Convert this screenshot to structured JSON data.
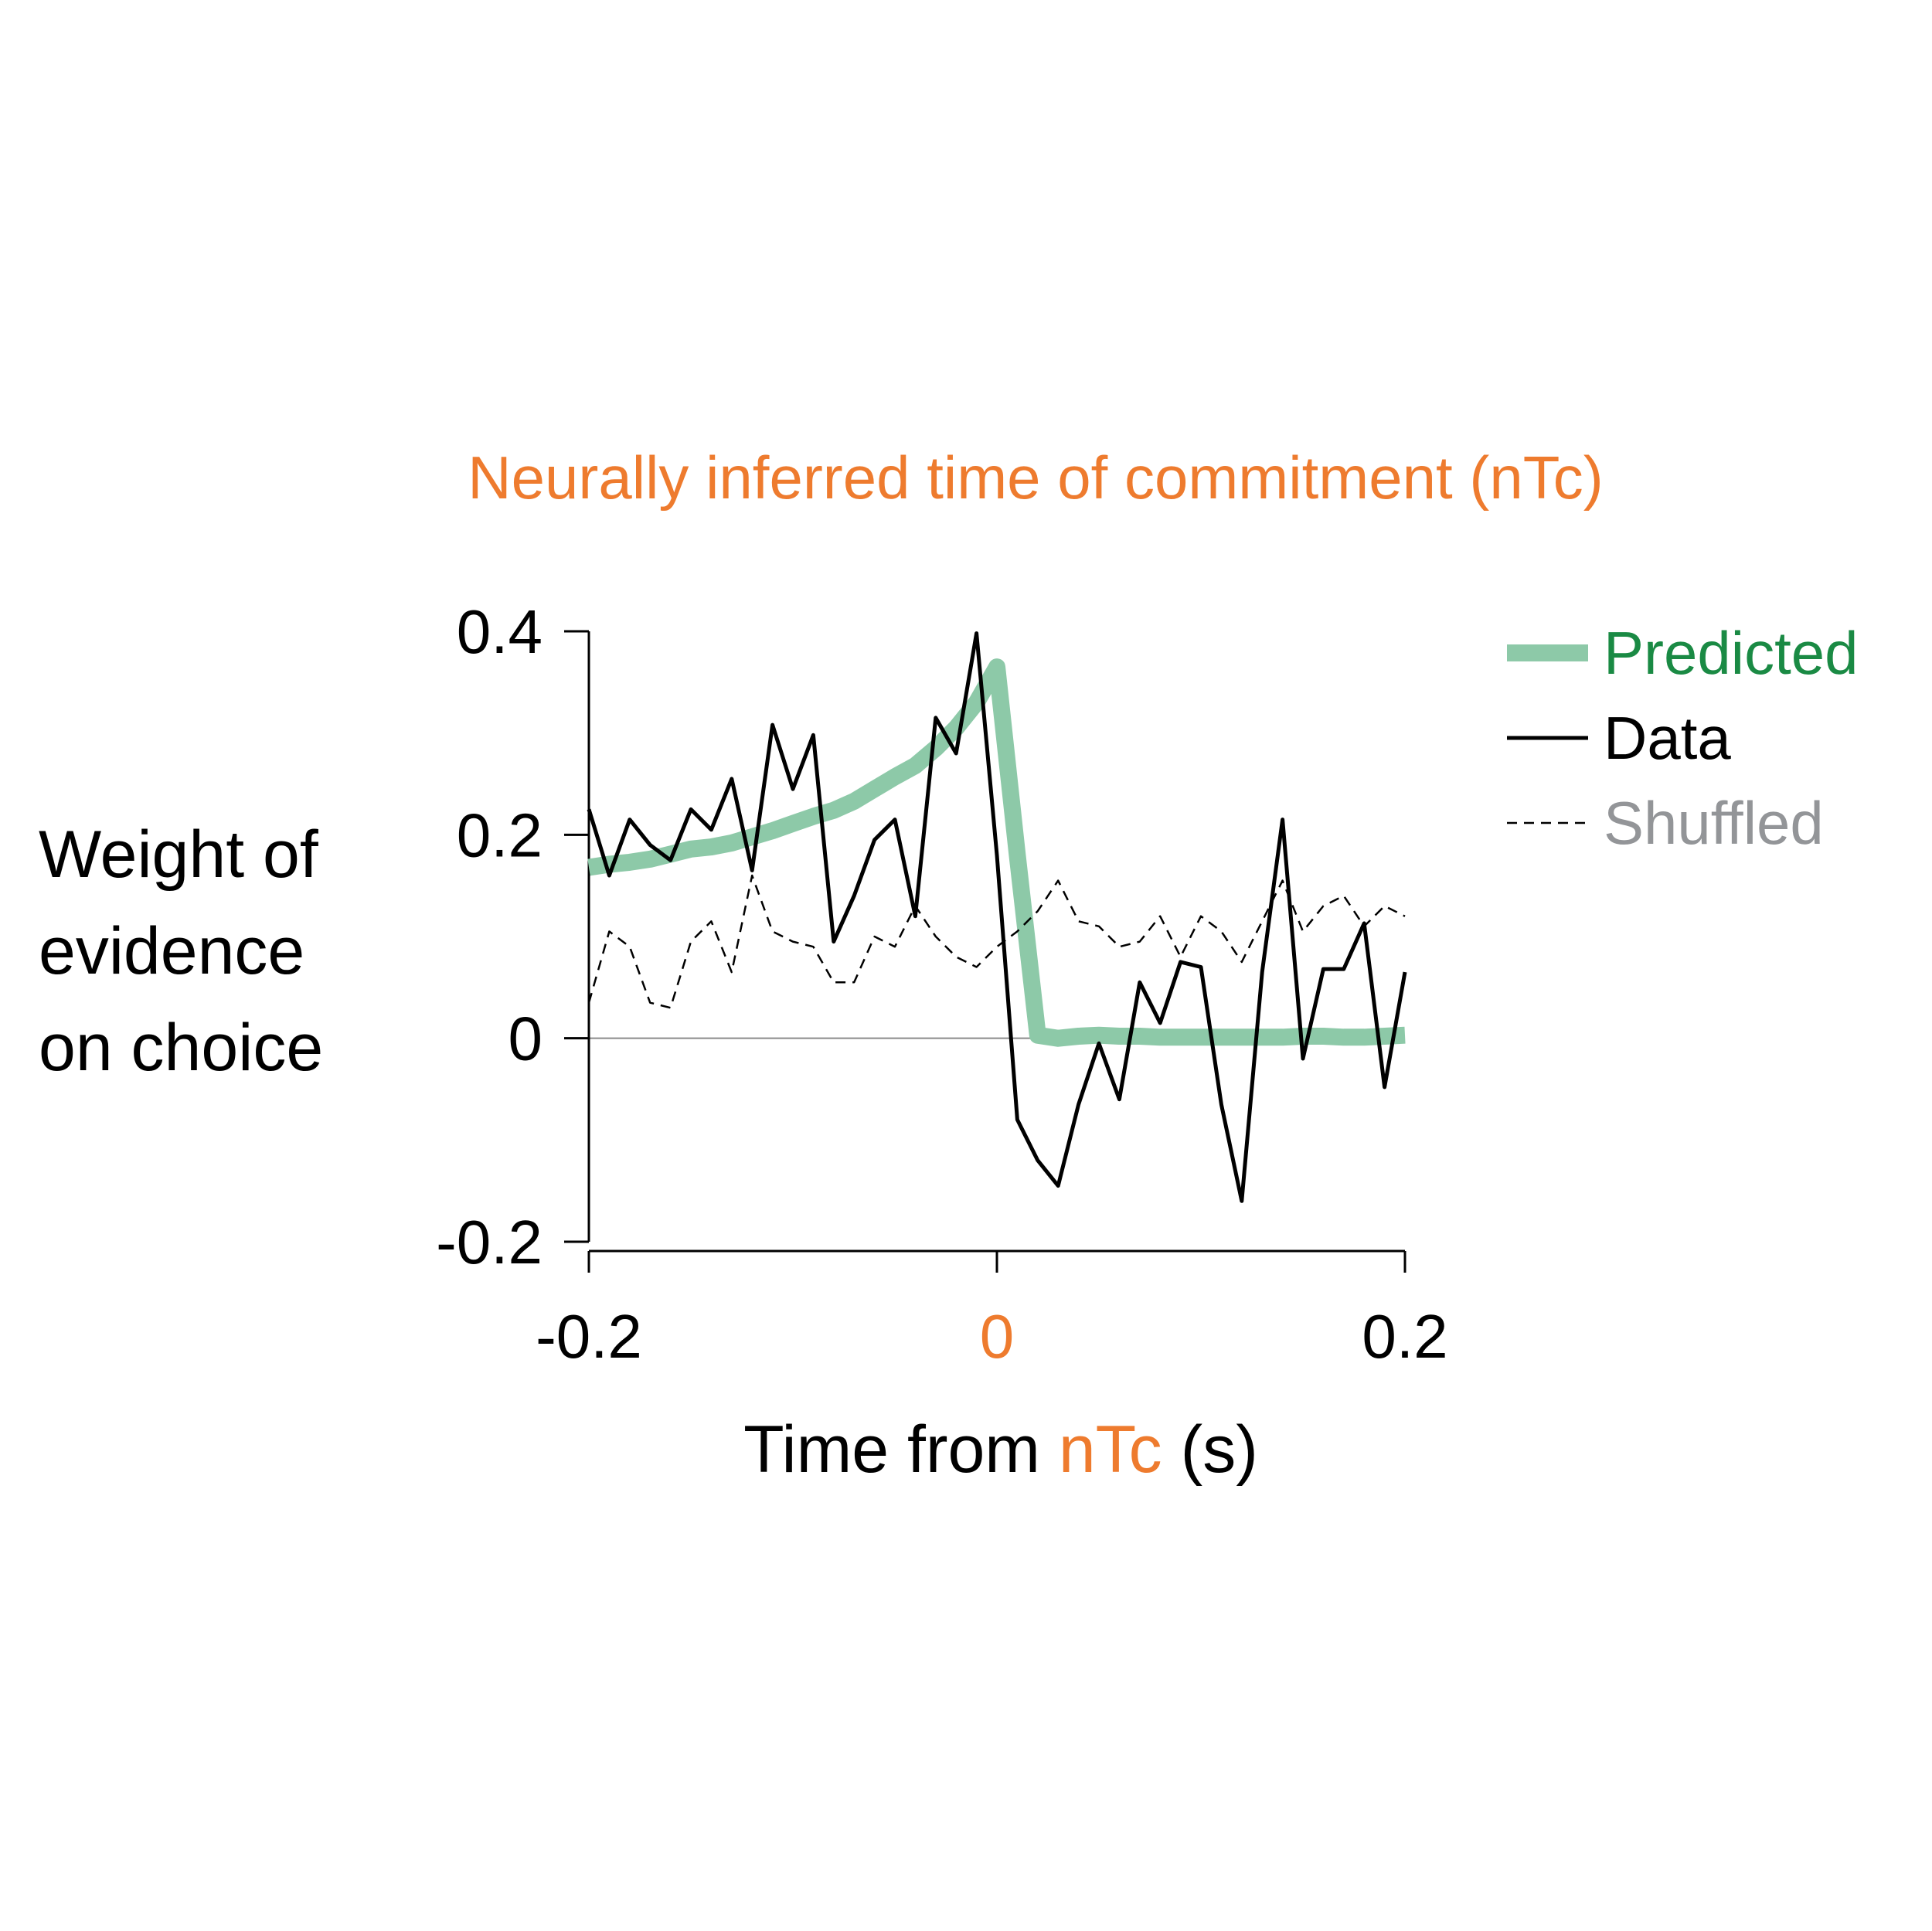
{
  "chart_data": {
    "type": "line",
    "title": "Neurally inferred time of commitment (nTc)",
    "ylabel_lines": [
      "Weight of",
      "evidence",
      "on choice"
    ],
    "xlabel": {
      "prefix": "Time from ",
      "highlight": "nTc",
      "suffix": " (s)"
    },
    "xlim": [
      -0.2,
      0.2
    ],
    "ylim": [
      -0.2,
      0.4
    ],
    "xticks": [
      {
        "value": -0.2,
        "label": "-0.2"
      },
      {
        "value": 0,
        "label": "0"
      },
      {
        "value": 0.2,
        "label": "0.2"
      }
    ],
    "yticks": [
      {
        "value": 0.4,
        "label": "0.4"
      },
      {
        "value": 0.2,
        "label": "0.2"
      },
      {
        "value": 0,
        "label": "0"
      },
      {
        "value": -0.2,
        "label": "-0.2"
      }
    ],
    "zero_line": true,
    "legend_position": "top-right",
    "series": [
      {
        "name": "Predicted",
        "color": "#8dc9a8",
        "label_color": "#1a8a44",
        "style": "thick",
        "x": [
          -0.2,
          -0.19,
          -0.18,
          -0.17,
          -0.16,
          -0.15,
          -0.14,
          -0.13,
          -0.12,
          -0.11,
          -0.1,
          -0.09,
          -0.08,
          -0.07,
          -0.06,
          -0.05,
          -0.04,
          -0.03,
          -0.02,
          -0.01,
          0.0,
          0.01,
          0.02,
          0.03,
          0.04,
          0.05,
          0.06,
          0.07,
          0.08,
          0.09,
          0.1,
          0.11,
          0.12,
          0.13,
          0.14,
          0.15,
          0.16,
          0.17,
          0.18,
          0.19,
          0.2
        ],
        "y": [
          0.168,
          0.171,
          0.173,
          0.176,
          0.181,
          0.186,
          0.188,
          0.192,
          0.198,
          0.204,
          0.211,
          0.218,
          0.224,
          0.233,
          0.245,
          0.257,
          0.268,
          0.285,
          0.305,
          0.33,
          0.365,
          0.18,
          0.003,
          0.0,
          0.002,
          0.003,
          0.002,
          0.002,
          0.001,
          0.001,
          0.001,
          0.001,
          0.001,
          0.001,
          0.001,
          0.002,
          0.002,
          0.001,
          0.001,
          0.002,
          0.003
        ]
      },
      {
        "name": "Data",
        "color": "#000000",
        "label_color": "#000000",
        "style": "solid",
        "x": [
          -0.2,
          -0.19,
          -0.18,
          -0.17,
          -0.16,
          -0.15,
          -0.14,
          -0.13,
          -0.12,
          -0.11,
          -0.1,
          -0.09,
          -0.08,
          -0.07,
          -0.06,
          -0.05,
          -0.04,
          -0.03,
          -0.02,
          -0.01,
          0.0,
          0.01,
          0.02,
          0.03,
          0.04,
          0.05,
          0.06,
          0.07,
          0.08,
          0.09,
          0.1,
          0.11,
          0.12,
          0.13,
          0.14,
          0.15,
          0.16,
          0.17,
          0.18,
          0.19,
          0.2
        ],
        "y": [
          0.225,
          0.16,
          0.215,
          0.19,
          0.175,
          0.225,
          0.205,
          0.255,
          0.165,
          0.308,
          0.245,
          0.298,
          0.095,
          0.14,
          0.195,
          0.215,
          0.12,
          0.315,
          0.28,
          0.398,
          0.18,
          -0.08,
          -0.12,
          -0.145,
          -0.065,
          -0.005,
          -0.06,
          0.055,
          0.015,
          0.075,
          0.07,
          -0.065,
          -0.16,
          0.065,
          0.215,
          -0.02,
          0.068,
          0.068,
          0.113,
          -0.048,
          0.065
        ]
      },
      {
        "name": "Shuffled",
        "color": "#000000",
        "label_color": "#939598",
        "style": "dashed",
        "x": [
          -0.2,
          -0.19,
          -0.18,
          -0.17,
          -0.16,
          -0.15,
          -0.14,
          -0.13,
          -0.12,
          -0.11,
          -0.1,
          -0.09,
          -0.08,
          -0.07,
          -0.06,
          -0.05,
          -0.04,
          -0.03,
          -0.02,
          -0.01,
          0.0,
          0.01,
          0.02,
          0.03,
          0.04,
          0.05,
          0.06,
          0.07,
          0.08,
          0.09,
          0.1,
          0.11,
          0.12,
          0.13,
          0.14,
          0.15,
          0.16,
          0.17,
          0.18,
          0.19,
          0.2
        ],
        "y": [
          0.035,
          0.105,
          0.09,
          0.035,
          0.03,
          0.095,
          0.115,
          0.065,
          0.16,
          0.105,
          0.095,
          0.09,
          0.055,
          0.055,
          0.1,
          0.09,
          0.13,
          0.1,
          0.08,
          0.07,
          0.09,
          0.105,
          0.125,
          0.155,
          0.115,
          0.11,
          0.09,
          0.095,
          0.12,
          0.08,
          0.12,
          0.105,
          0.075,
          0.115,
          0.155,
          0.105,
          0.13,
          0.14,
          0.11,
          0.13,
          0.12
        ]
      }
    ]
  }
}
